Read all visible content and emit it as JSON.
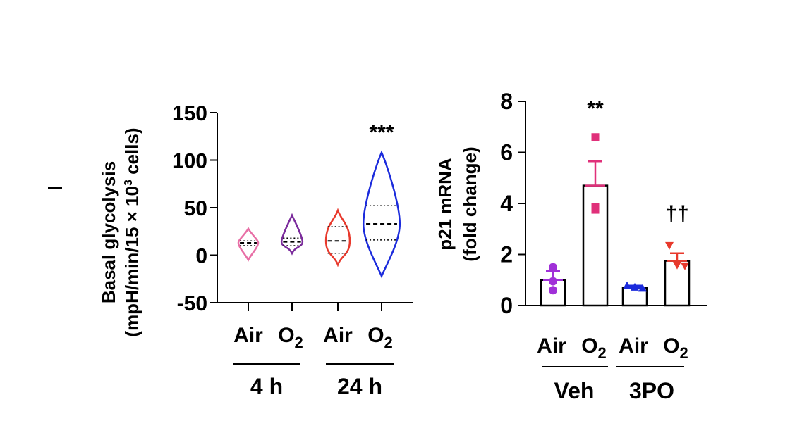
{
  "chart_data": [
    {
      "type": "violin",
      "ylabel_line1": "Basal glycolysis",
      "ylabel_line2_prefix": "(mpH/min/15 × 10",
      "ylabel_line2_sup": "3",
      "ylabel_line2_suffix": " cells)",
      "ylim": [
        -50,
        150
      ],
      "yticks": [
        "150",
        "100",
        "50",
        "0",
        "-50"
      ],
      "ytick_values": [
        150,
        100,
        50,
        0,
        -50
      ],
      "categories": [
        {
          "label": "Air",
          "sub": ""
        },
        {
          "label": "O",
          "sub": "2"
        },
        {
          "label": "Air",
          "sub": ""
        },
        {
          "label": "O",
          "sub": "2"
        }
      ],
      "groups": [
        "4 h",
        "24 h"
      ],
      "significance": [
        {
          "index": 3,
          "text": "***"
        }
      ],
      "series": [
        {
          "color": "#e86fa6",
          "min": -5,
          "max": 28,
          "median": 13,
          "q1": 10,
          "q3": 15
        },
        {
          "color": "#7b2b9c",
          "min": 2,
          "max": 42,
          "median": 14,
          "q1": 10,
          "q3": 18
        },
        {
          "color": "#e8392c",
          "min": -10,
          "max": 47,
          "median": 15,
          "q1": 2,
          "q3": 30
        },
        {
          "color": "#1b2bdc",
          "min": -22,
          "max": 108,
          "median": 33,
          "q1": 16,
          "q3": 52
        }
      ]
    },
    {
      "type": "bar",
      "ylabel_line1": "p21 mRNA",
      "ylabel_line2": "(fold change)",
      "ylim": [
        0,
        8
      ],
      "yticks": [
        "8",
        "6",
        "4",
        "2",
        "0"
      ],
      "ytick_values": [
        8,
        6,
        4,
        2,
        0
      ],
      "categories": [
        {
          "label": "Air",
          "sub": ""
        },
        {
          "label": "O",
          "sub": "2"
        },
        {
          "label": "Air",
          "sub": ""
        },
        {
          "label": "O",
          "sub": "2"
        }
      ],
      "groups": [
        "Veh",
        "3PO"
      ],
      "significance": [
        {
          "index": 1,
          "text": "**"
        },
        {
          "index": 3,
          "text": "††"
        }
      ],
      "values": [
        1.0,
        4.7,
        0.7,
        1.75
      ],
      "errors": [
        0.35,
        0.95,
        0.08,
        0.3
      ],
      "colors": [
        "#a030d8",
        "#e0307a",
        "#1b2bdc",
        "#e8392c"
      ],
      "markers": [
        "circle",
        "square",
        "triangle-up",
        "triangle-down"
      ],
      "points": [
        [
          1.5,
          0.95,
          0.6
        ],
        [
          6.6,
          3.85,
          3.75
        ],
        [
          0.78,
          0.72,
          0.68
        ],
        [
          2.35,
          1.58,
          1.55
        ]
      ]
    }
  ]
}
